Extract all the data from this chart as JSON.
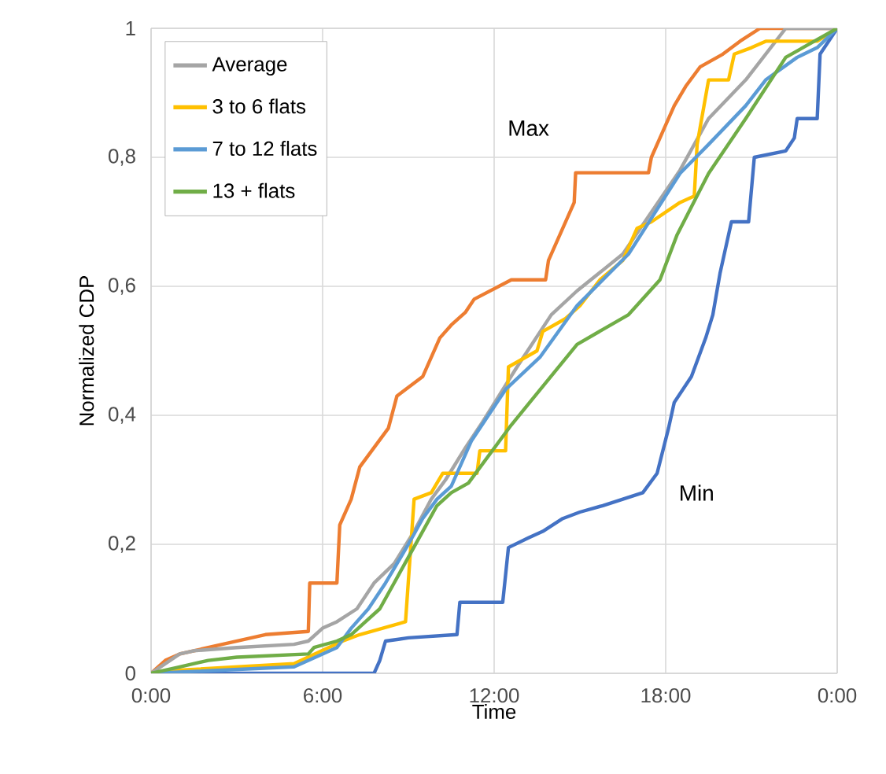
{
  "chart_data": {
    "type": "line",
    "xlabel": "Time",
    "ylabel": "Normalized CDP",
    "xlim": [
      0,
      24
    ],
    "ylim": [
      0,
      1
    ],
    "xticks": [
      {
        "value": 0,
        "label": "0:00"
      },
      {
        "value": 6,
        "label": "6:00"
      },
      {
        "value": 12,
        "label": "12:00"
      },
      {
        "value": 18,
        "label": "18:00"
      },
      {
        "value": 24,
        "label": "0:00"
      }
    ],
    "yticks": [
      0,
      {
        "value": 0.2,
        "label": "0,2"
      },
      {
        "value": 0.4,
        "label": "0,4"
      },
      {
        "value": 0.6,
        "label": "0,6"
      },
      {
        "value": 0.8,
        "label": "0,8"
      },
      1
    ],
    "grid": true,
    "legend": "top left",
    "series": [
      {
        "color": "#ed7d31",
        "x": [
          0,
          0.5,
          1,
          2,
          3,
          4,
          5.5,
          5.55,
          6.5,
          6.6,
          7,
          7.3,
          8.3,
          8.6,
          9.5,
          9.8,
          10.1,
          10.5,
          11,
          11.3,
          12.6,
          13.8,
          13.9,
          14.2,
          14.5,
          14.8,
          14.85,
          17.4,
          17.5,
          17.9,
          18.3,
          18.7,
          19.2,
          20,
          20.6,
          21.3,
          24
        ],
        "values": [
          0,
          0.02,
          0.03,
          0.04,
          0.05,
          0.06,
          0.065,
          0.14,
          0.14,
          0.23,
          0.27,
          0.32,
          0.38,
          0.43,
          0.46,
          0.49,
          0.52,
          0.54,
          0.56,
          0.58,
          0.61,
          0.61,
          0.64,
          0.67,
          0.7,
          0.73,
          0.776,
          0.776,
          0.8,
          0.84,
          0.88,
          0.91,
          0.94,
          0.96,
          0.98,
          1,
          1
        ]
      },
      {
        "color": "#4472c4",
        "x": [
          0,
          7.8,
          8,
          8.2,
          9,
          10.7,
          10.8,
          12.3,
          12.5,
          13.2,
          13.7,
          14.4,
          15,
          15.8,
          16.5,
          17.2,
          17.7,
          18.1,
          18.3,
          18.9,
          19.4,
          19.65,
          19.9,
          20.3,
          20.9,
          21.1,
          22.2,
          22.5,
          22.6,
          23.3,
          23.4,
          23.7,
          24
        ],
        "values": [
          0,
          0,
          0.02,
          0.05,
          0.055,
          0.06,
          0.11,
          0.11,
          0.195,
          0.21,
          0.22,
          0.24,
          0.25,
          0.26,
          0.27,
          0.28,
          0.31,
          0.38,
          0.42,
          0.46,
          0.52,
          0.556,
          0.62,
          0.7,
          0.7,
          0.8,
          0.81,
          0.83,
          0.86,
          0.86,
          0.96,
          0.98,
          1
        ]
      },
      {
        "name": "Average",
        "color": "#a5a5a5",
        "x": [
          0,
          1,
          1.5,
          3,
          5,
          5.5,
          6,
          6.5,
          7.2,
          7.8,
          8.5,
          9.2,
          9.8,
          10.3,
          11,
          11.6,
          12.8,
          14,
          14.9,
          16.5,
          18.5,
          19.5,
          20.8,
          22.2,
          24
        ],
        "values": [
          0,
          0.03,
          0.035,
          0.04,
          0.045,
          0.05,
          0.07,
          0.08,
          0.1,
          0.14,
          0.17,
          0.22,
          0.27,
          0.3,
          0.35,
          0.39,
          0.475,
          0.556,
          0.593,
          0.65,
          0.78,
          0.86,
          0.92,
          1,
          1
        ]
      },
      {
        "name": "3 to 6 flats",
        "color": "#ffc000",
        "x": [
          0,
          1,
          5,
          6.7,
          7.3,
          8.9,
          9.2,
          9.8,
          10.2,
          11.4,
          11.5,
          12.4,
          12.5,
          13.5,
          13.7,
          14.5,
          15,
          15.7,
          16.5,
          17,
          17.5,
          18.5,
          19,
          19.1,
          19.5,
          20.2,
          20.4,
          21,
          21.5,
          23.3,
          24
        ],
        "values": [
          0,
          0.005,
          0.015,
          0.05,
          0.06,
          0.08,
          0.27,
          0.28,
          0.31,
          0.31,
          0.345,
          0.345,
          0.475,
          0.5,
          0.53,
          0.55,
          0.57,
          0.61,
          0.64,
          0.69,
          0.7,
          0.73,
          0.74,
          0.82,
          0.92,
          0.92,
          0.96,
          0.97,
          0.98,
          0.98,
          1
        ]
      },
      {
        "name": "7 to 12 flats",
        "color": "#5b9bd5",
        "x": [
          0,
          5,
          6.5,
          7,
          7.6,
          8.2,
          8.6,
          9,
          9.5,
          10,
          10.5,
          11.2,
          12.4,
          13.6,
          14.9,
          16.7,
          18.5,
          19.5,
          20.8,
          21.5,
          22.6,
          23.3,
          24
        ],
        "values": [
          0,
          0.01,
          0.04,
          0.07,
          0.1,
          0.14,
          0.17,
          0.2,
          0.24,
          0.27,
          0.29,
          0.36,
          0.44,
          0.49,
          0.57,
          0.65,
          0.775,
          0.82,
          0.88,
          0.92,
          0.955,
          0.97,
          1
        ]
      },
      {
        "name": "13 + flats",
        "color": "#70ad47",
        "x": [
          0,
          1,
          2,
          3,
          5.5,
          5.7,
          6.5,
          7,
          7.5,
          8,
          8.5,
          9,
          9.5,
          10,
          10.5,
          11.1,
          12.6,
          14.9,
          16.7,
          17.8,
          18.4,
          19.5,
          20.8,
          22.2,
          24
        ],
        "values": [
          0,
          0.01,
          0.02,
          0.025,
          0.03,
          0.04,
          0.05,
          0.06,
          0.08,
          0.1,
          0.14,
          0.18,
          0.22,
          0.26,
          0.28,
          0.295,
          0.385,
          0.51,
          0.556,
          0.61,
          0.68,
          0.775,
          0.86,
          0.955,
          1
        ]
      }
    ],
    "annotations": [
      "Max",
      "Min"
    ]
  }
}
